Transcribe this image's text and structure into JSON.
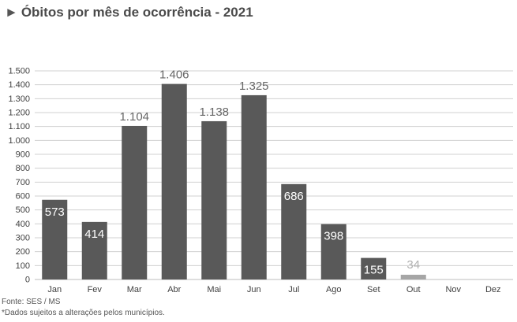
{
  "header": {
    "marker": "►",
    "title": "Óbitos por mês de ocorrência - 2021"
  },
  "chart_data": {
    "type": "bar",
    "title": "Óbitos por mês de ocorrência - 2021",
    "xlabel": "",
    "ylabel": "",
    "categories": [
      "Jan",
      "Fev",
      "Mar",
      "Abr",
      "Mai",
      "Jun",
      "Jul",
      "Ago",
      "Set",
      "Out",
      "Nov",
      "Dez"
    ],
    "values": [
      573,
      414,
      1104,
      1406,
      1138,
      1325,
      686,
      398,
      155,
      34,
      null,
      null
    ],
    "data_labels": [
      "573",
      "414",
      "1.104",
      "1.406",
      "1.138",
      "1.325",
      "686",
      "398",
      "155",
      "34",
      "",
      ""
    ],
    "ylim": [
      0,
      1500
    ],
    "yticks": [
      0,
      100,
      200,
      300,
      400,
      500,
      600,
      700,
      800,
      900,
      1000,
      1100,
      1200,
      1300,
      1400,
      1500
    ],
    "ytick_labels": [
      "0",
      "100",
      "200",
      "300",
      "400",
      "500",
      "600",
      "700",
      "800",
      "900",
      "1.000",
      "1.100",
      "1.200",
      "1.300",
      "1.400",
      "1.500"
    ],
    "grid": true,
    "bar_color": "#595959",
    "last_bar_color": "#a6a6a6",
    "grid_color": "#d0d0d0"
  },
  "footer": {
    "source": "Fonte: SES / MS",
    "note": "*Dados sujeitos a alterações pelos municípios."
  }
}
